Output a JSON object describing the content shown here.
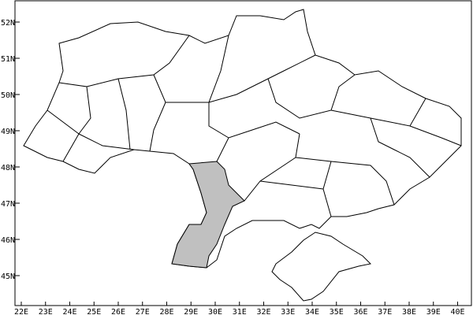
{
  "map": {
    "lon_ticks": [
      "22E",
      "23E",
      "24E",
      "25E",
      "26E",
      "27E",
      "28E",
      "29E",
      "30E",
      "31E",
      "32E",
      "33E",
      "34E",
      "35E",
      "36E",
      "37E",
      "38E",
      "39E",
      "40E"
    ],
    "lat_ticks": [
      "45N",
      "46N",
      "47N",
      "48N",
      "49N",
      "50N",
      "51N",
      "52N"
    ],
    "highlight_color": "#c0c0c0",
    "border_color": "#000000",
    "highlighted_region": "Odesa Oblast"
  }
}
